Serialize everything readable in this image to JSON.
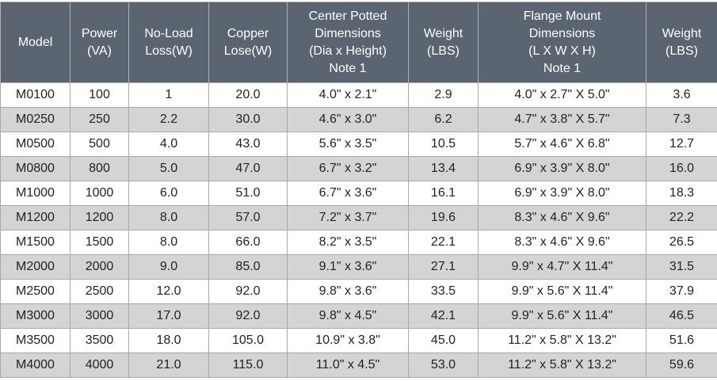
{
  "table": {
    "header": [
      [
        "Model"
      ],
      [
        "Power",
        "(VA)"
      ],
      [
        "No-Load",
        "Loss(W)"
      ],
      [
        "Copper",
        "Lose(W)"
      ],
      [
        "Center Potted",
        "Dimensions",
        "(Dia x Height)",
        "Note 1"
      ],
      [
        "Weight",
        "(LBS)"
      ],
      [
        "Flange Mount",
        "Dimensions",
        "(L X W X H)",
        "Note 1"
      ],
      [
        "Weight",
        "(LBS)"
      ]
    ],
    "rows": [
      [
        "M0100",
        "100",
        "1",
        "20.0",
        "4.0\" x 2.1\"",
        "2.9",
        "4.0\" x 2.7\" X 5.0\"",
        "3.6"
      ],
      [
        "M0250",
        "250",
        "2.2",
        "30.0",
        "4.6\" x 3.0\"",
        "6.2",
        "4.7\" x 3.8\" X 5.7\"",
        "7.3"
      ],
      [
        "M0500",
        "500",
        "4.0",
        "43.0",
        "5.6\" x 3.5\"",
        "10.5",
        "5.7\" x 4.6\" X 6.8\"",
        "12.7"
      ],
      [
        "M0800",
        "800",
        "5.0",
        "47.0",
        "6.7\" x 3.2\"",
        "13.4",
        "6.9\" x 3.9\" X 8.0\"",
        "16.0"
      ],
      [
        "M1000",
        "1000",
        "6.0",
        "51.0",
        "6.7\" x 3.6\"",
        "16.1",
        "6.9\" x 3.9\" X 8.0\"",
        "18.3"
      ],
      [
        "M1200",
        "1200",
        "8.0",
        "57.0",
        "7.2\" x 3.7\"",
        "19.6",
        "8.3\" x 4.6\" X 9.6\"",
        "22.2"
      ],
      [
        "M1500",
        "1500",
        "8.0",
        "66.0",
        "8.2\" x 3.5\"",
        "22.1",
        "8.3\" x 4.6\" X 9.6\"",
        "26.5"
      ],
      [
        "M2000",
        "2000",
        "9.0",
        "85.0",
        "9.1\" x 3.6\"",
        "27.1",
        "9.9\" x 4.7\" X 11.4\"",
        "31.5"
      ],
      [
        "M2500",
        "2500",
        "12.0",
        "92.0",
        "9.8\" x 3.6\"",
        "33.5",
        "9.9\" x 5.6\" X 11.4\"",
        "37.9"
      ],
      [
        "M3000",
        "3000",
        "17.0",
        "92.0",
        "9.8\" x 4.5\"",
        "42.1",
        "9.9\" x 5.6\" X 11.4\"",
        "46.5"
      ],
      [
        "M3500",
        "3500",
        "18.0",
        "105.0",
        "10.9\" x 3.8\"",
        "45.0",
        "11.2\" x 5.8\" X 13.2\"",
        "51.6"
      ],
      [
        "M4000",
        "4000",
        "21.0",
        "115.0",
        "11.0\" x 4.5\"",
        "53.0",
        "11.2\" x 5.8\" X 13.2\"",
        "59.6"
      ]
    ]
  }
}
